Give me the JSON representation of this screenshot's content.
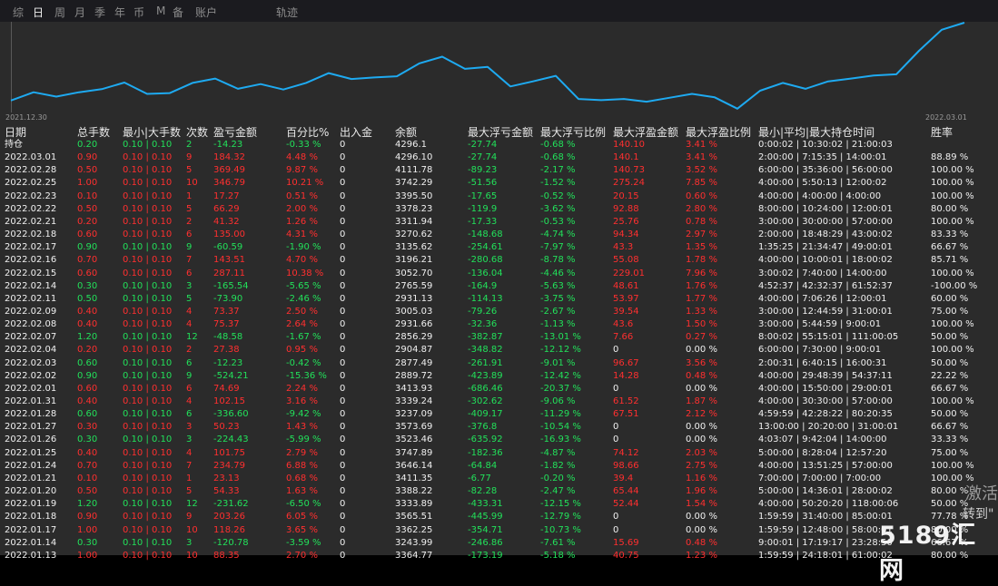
{
  "tabs": {
    "items": [
      "综",
      "日",
      "周",
      "月",
      "季",
      "年",
      "币",
      "M",
      "备",
      "账户"
    ],
    "active": 1,
    "track": "轨迹"
  },
  "chart": {
    "date_start": "2021.12.30",
    "date_end": "2022.03.01",
    "line_color": "#1eaaf1",
    "background": "#2b2b2b"
  },
  "colors": {
    "positive": "#22e05a",
    "negative": "#ff2f2f"
  },
  "chart_data": {
    "type": "line",
    "x_start": "2021.12.30",
    "x_end": "2022.03.01",
    "values": [
      2911.0,
      2932.0,
      2921.0,
      2932.0,
      2940.0,
      2957.0,
      2928.0,
      2930.0,
      2956.0,
      2967.0,
      2941.0,
      2953.0,
      2939.0,
      2956.0,
      2981.0,
      2966.0,
      2970.0,
      2973.0,
      3006.0,
      3023.0,
      2992.0,
      2997.0,
      2947.0,
      2960.0,
      2974.0,
      2915.0,
      2912.0,
      2915.0,
      2908.0,
      2918.0,
      2928.0,
      2919.0,
      2890.0,
      2936.0,
      2956.0,
      2941.0,
      2960.0,
      2967.0,
      2975.0,
      2978.0,
      3038.0,
      3092.0,
      3110.0
    ]
  },
  "table": {
    "headers": [
      "日期",
      "总手数",
      "最小|大手数",
      "次数",
      "盈亏金额",
      "百分比%",
      "出入金",
      "余额",
      "最大浮亏金额",
      "最大浮亏比例",
      "最大浮盈金额",
      "最大浮盈比例",
      "最小|平均|最大持仓时间",
      "胜率"
    ],
    "rows": [
      [
        "持仓",
        "0.20",
        "0.10 | 0.10",
        "2",
        "-14.23",
        "-0.33 %",
        "0",
        "4296.1",
        "-27.74",
        "-0.68 %",
        "140.10",
        "3.41 %",
        "0:00:02 | 10:30:02 | 21:00:03",
        ""
      ],
      [
        "2022.03.01",
        "0.90",
        "0.10 | 0.10",
        "9",
        "184.32",
        "4.48 %",
        "0",
        "4296.10",
        "-27.74",
        "-0.68 %",
        "140.1",
        "3.41 %",
        "2:00:00 | 7:15:35 | 14:00:01",
        "88.89 %"
      ],
      [
        "2022.02.28",
        "0.50",
        "0.10 | 0.10",
        "5",
        "369.49",
        "9.87 %",
        "0",
        "4111.78",
        "-89.23",
        "-2.17 %",
        "140.73",
        "3.52 %",
        "6:00:00 | 35:36:00 | 56:00:00",
        "100.00 %"
      ],
      [
        "2022.02.25",
        "1.00",
        "0.10 | 0.10",
        "10",
        "346.79",
        "10.21 %",
        "0",
        "3742.29",
        "-51.56",
        "-1.52 %",
        "275.24",
        "7.85 %",
        "4:00:00 | 5:50:13 | 12:00:02",
        "100.00 %"
      ],
      [
        "2022.02.23",
        "0.10",
        "0.10 | 0.10",
        "1",
        "17.27",
        "0.51 %",
        "0",
        "3395.50",
        "-17.65",
        "-0.52 %",
        "20.15",
        "0.60 %",
        "4:00:00 | 4:00:00 | 4:00:00",
        "100.00 %"
      ],
      [
        "2022.02.22",
        "0.50",
        "0.10 | 0.10",
        "5",
        "66.29",
        "2.00 %",
        "0",
        "3378.23",
        "-119.9",
        "-3.62 %",
        "92.88",
        "2.80 %",
        "8:00:00 | 10:24:00 | 12:00:01",
        "80.00 %"
      ],
      [
        "2022.02.21",
        "0.20",
        "0.10 | 0.10",
        "2",
        "41.32",
        "1.26 %",
        "0",
        "3311.94",
        "-17.33",
        "-0.53 %",
        "25.76",
        "0.78 %",
        "3:00:00 | 30:00:00 | 57:00:00",
        "100.00 %"
      ],
      [
        "2022.02.18",
        "0.60",
        "0.10 | 0.10",
        "6",
        "135.00",
        "4.31 %",
        "0",
        "3270.62",
        "-148.68",
        "-4.74 %",
        "94.34",
        "2.97 %",
        "2:00:00 | 18:48:29 | 43:00:02",
        "83.33 %"
      ],
      [
        "2022.02.17",
        "0.90",
        "0.10 | 0.10",
        "9",
        "-60.59",
        "-1.90 %",
        "0",
        "3135.62",
        "-254.61",
        "-7.97 %",
        "43.3",
        "1.35 %",
        "1:35:25 | 21:34:47 | 49:00:01",
        "66.67 %"
      ],
      [
        "2022.02.16",
        "0.70",
        "0.10 | 0.10",
        "7",
        "143.51",
        "4.70 %",
        "0",
        "3196.21",
        "-280.68",
        "-8.78 %",
        "55.08",
        "1.78 %",
        "4:00:00 | 10:00:01 | 18:00:02",
        "85.71 %"
      ],
      [
        "2022.02.15",
        "0.60",
        "0.10 | 0.10",
        "6",
        "287.11",
        "10.38 %",
        "0",
        "3052.70",
        "-136.04",
        "-4.46 %",
        "229.01",
        "7.96 %",
        "3:00:02 | 7:40:00 | 14:00:00",
        "100.00 %"
      ],
      [
        "2022.02.14",
        "0.30",
        "0.10 | 0.10",
        "3",
        "-165.54",
        "-5.65 %",
        "0",
        "2765.59",
        "-164.9",
        "-5.63 %",
        "48.61",
        "1.76 %",
        "4:52:37 | 42:32:37 | 61:52:37",
        "-100.00 %"
      ],
      [
        "2022.02.11",
        "0.50",
        "0.10 | 0.10",
        "5",
        "-73.90",
        "-2.46 %",
        "0",
        "2931.13",
        "-114.13",
        "-3.75 %",
        "53.97",
        "1.77 %",
        "4:00:00 | 7:06:26 | 12:00:01",
        "60.00 %"
      ],
      [
        "2022.02.09",
        "0.40",
        "0.10 | 0.10",
        "4",
        "73.37",
        "2.50 %",
        "0",
        "3005.03",
        "-79.26",
        "-2.67 %",
        "39.54",
        "1.33 %",
        "3:00:00 | 12:44:59 | 31:00:01",
        "75.00 %"
      ],
      [
        "2022.02.08",
        "0.40",
        "0.10 | 0.10",
        "4",
        "75.37",
        "2.64 %",
        "0",
        "2931.66",
        "-32.36",
        "-1.13 %",
        "43.6",
        "1.50 %",
        "3:00:00 | 5:44:59 | 9:00:01",
        "100.00 %"
      ],
      [
        "2022.02.07",
        "1.20",
        "0.10 | 0.10",
        "12",
        "-48.58",
        "-1.67 %",
        "0",
        "2856.29",
        "-382.87",
        "-13.01 %",
        "7.66",
        "0.27 %",
        "8:00:02 | 55:15:01 | 111:00:05",
        "50.00 %"
      ],
      [
        "2022.02.04",
        "0.20",
        "0.10 | 0.10",
        "2",
        "27.38",
        "0.95 %",
        "0",
        "2904.87",
        "-348.82",
        "-12.12 %",
        "0",
        "0.00 %",
        "6:00:00 | 7:30:00 | 9:00:01",
        "100.00 %"
      ],
      [
        "2022.02.03",
        "0.60",
        "0.10 | 0.10",
        "6",
        "-12.23",
        "-0.42 %",
        "0",
        "2877.49",
        "-261.91",
        "-9.01 %",
        "96.67",
        "3.56 %",
        "2:00:31 | 6:40:15 | 16:00:31",
        "50.00 %"
      ],
      [
        "2022.02.02",
        "0.90",
        "0.10 | 0.10",
        "9",
        "-524.21",
        "-15.36 %",
        "0",
        "2889.72",
        "-423.89",
        "-12.42 %",
        "14.28",
        "0.48 %",
        "4:00:00 | 29:48:39 | 54:37:11",
        "22.22 %"
      ],
      [
        "2022.02.01",
        "0.60",
        "0.10 | 0.10",
        "6",
        "74.69",
        "2.24 %",
        "0",
        "3413.93",
        "-686.46",
        "-20.37 %",
        "0",
        "0.00 %",
        "4:00:00 | 15:50:00 | 29:00:01",
        "66.67 %"
      ],
      [
        "2022.01.31",
        "0.40",
        "0.10 | 0.10",
        "4",
        "102.15",
        "3.16 %",
        "0",
        "3339.24",
        "-302.62",
        "-9.06 %",
        "61.52",
        "1.87 %",
        "4:00:00 | 30:30:00 | 57:00:00",
        "100.00 %"
      ],
      [
        "2022.01.28",
        "0.60",
        "0.10 | 0.10",
        "6",
        "-336.60",
        "-9.42 %",
        "0",
        "3237.09",
        "-409.17",
        "-11.29 %",
        "67.51",
        "2.12 %",
        "4:59:59 | 42:28:22 | 80:20:35",
        "50.00 %"
      ],
      [
        "2022.01.27",
        "0.30",
        "0.10 | 0.10",
        "3",
        "50.23",
        "1.43 %",
        "0",
        "3573.69",
        "-376.8",
        "-10.54 %",
        "0",
        "0.00 %",
        "13:00:00 | 20:20:00 | 31:00:01",
        "66.67 %"
      ],
      [
        "2022.01.26",
        "0.30",
        "0.10 | 0.10",
        "3",
        "-224.43",
        "-5.99 %",
        "0",
        "3523.46",
        "-635.92",
        "-16.93 %",
        "0",
        "0.00 %",
        "4:03:07 | 9:42:04 | 14:00:00",
        "33.33 %"
      ],
      [
        "2022.01.25",
        "0.40",
        "0.10 | 0.10",
        "4",
        "101.75",
        "2.79 %",
        "0",
        "3747.89",
        "-182.36",
        "-4.87 %",
        "74.12",
        "2.03 %",
        "5:00:00 | 8:28:04 | 12:57:20",
        "75.00 %"
      ],
      [
        "2022.01.24",
        "0.70",
        "0.10 | 0.10",
        "7",
        "234.79",
        "6.88 %",
        "0",
        "3646.14",
        "-64.84",
        "-1.82 %",
        "98.66",
        "2.75 %",
        "4:00:00 | 13:51:25 | 57:00:00",
        "100.00 %"
      ],
      [
        "2022.01.21",
        "0.10",
        "0.10 | 0.10",
        "1",
        "23.13",
        "0.68 %",
        "0",
        "3411.35",
        "-6.77",
        "-0.20 %",
        "39.4",
        "1.16 %",
        "7:00:00 | 7:00:00 | 7:00:00",
        "100.00 %"
      ],
      [
        "2022.01.20",
        "0.50",
        "0.10 | 0.10",
        "5",
        "54.33",
        "1.63 %",
        "0",
        "3388.22",
        "-82.28",
        "-2.47 %",
        "65.44",
        "1.96 %",
        "5:00:00 | 14:36:01 | 28:00:02",
        "80.00 %"
      ],
      [
        "2022.01.19",
        "1.20",
        "0.10 | 0.10",
        "12",
        "-231.62",
        "-6.50 %",
        "0",
        "3333.89",
        "-433.31",
        "-12.15 %",
        "52.44",
        "1.54 %",
        "4:00:00 | 50:20:20 | 118:00:06",
        "50.00 %"
      ],
      [
        "2022.01.18",
        "0.90",
        "0.10 | 0.10",
        "9",
        "203.26",
        "6.05 %",
        "0",
        "3565.51",
        "-445.99",
        "-12.79 %",
        "0",
        "0.00 %",
        "1:59:59 | 31:40:00 | 85:00:01",
        "77.78 %"
      ],
      [
        "2022.01.17",
        "1.00",
        "0.10 | 0.10",
        "10",
        "118.26",
        "3.65 %",
        "0",
        "3362.25",
        "-354.71",
        "-10.73 %",
        "0",
        "0.00 %",
        "1:59:59 | 12:48:00 | 58:00:01",
        "80.00 %"
      ],
      [
        "2022.01.14",
        "0.30",
        "0.10 | 0.10",
        "3",
        "-120.78",
        "-3.59 %",
        "0",
        "3243.99",
        "-246.86",
        "-7.61 %",
        "15.69",
        "0.48 %",
        "9:00:01 | 17:19:17 | 23:28:50",
        "66.67 %"
      ],
      [
        "2022.01.13",
        "1.00",
        "0.10 | 0.10",
        "10",
        "88.35",
        "2.70 %",
        "0",
        "3364.77",
        "-173.19",
        "-5.18 %",
        "40.75",
        "1.23 %",
        "1:59:59 | 24:18:01 | 61:00:02",
        "80.00 %"
      ]
    ]
  },
  "watermark": {
    "line1": "激活",
    "line2": "转到\"",
    "brand": "5189汇网"
  }
}
